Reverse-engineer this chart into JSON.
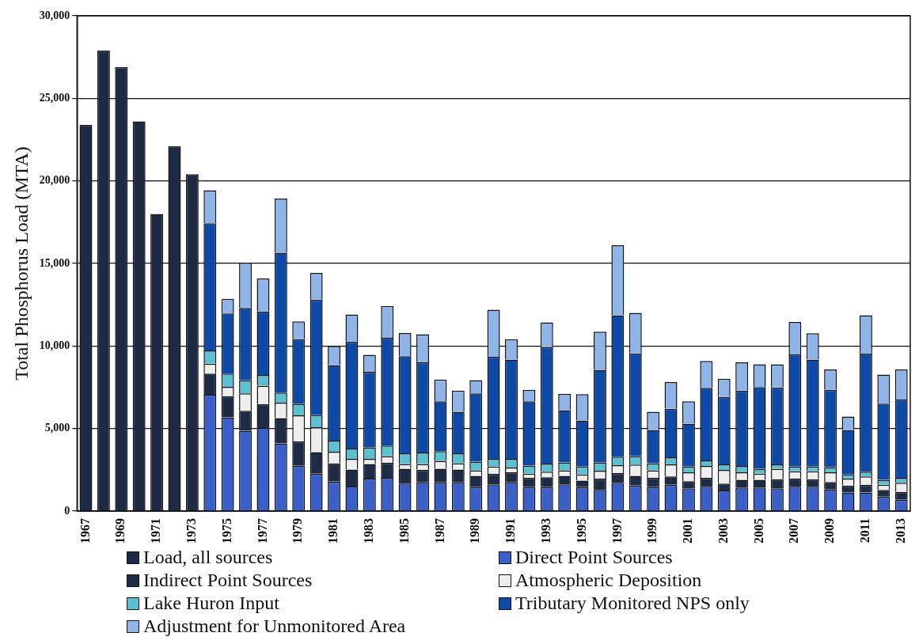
{
  "chart_data": {
    "type": "bar",
    "stacked": true,
    "ylabel": "Total Phosphorus Load (MTA)",
    "categories": [
      "1967",
      null,
      "1969",
      null,
      "1971",
      null,
      "1973",
      null,
      "1975",
      null,
      "1977",
      null,
      "1979",
      null,
      "1981",
      null,
      "1983",
      null,
      "1985",
      null,
      "1987",
      null,
      "1989",
      null,
      "1991",
      null,
      "1993",
      null,
      "1995",
      null,
      "1997",
      null,
      "1999",
      null,
      "2001",
      null,
      "2003",
      null,
      "2005",
      null,
      "2007",
      null,
      "2009",
      null,
      "2011",
      null,
      "2013"
    ],
    "ylim": [
      0,
      30000
    ],
    "yticks": [
      {
        "value": 0,
        "label": "0"
      },
      {
        "value": 5000,
        "label": "5,000"
      },
      {
        "value": 10000,
        "label": "10,000"
      },
      {
        "value": 15000,
        "label": "15,000"
      },
      {
        "value": 20000,
        "label": "20,000"
      },
      {
        "value": 25000,
        "label": "25,000"
      },
      {
        "value": 30000,
        "label": "30,000"
      }
    ],
    "grid": "y",
    "legend": "bottom",
    "series": [
      {
        "name": "Load, all sources",
        "color": "#1c2a44",
        "values": [
          23400,
          27900,
          26900,
          23600,
          18000,
          22100,
          20400,
          null,
          null,
          null,
          null,
          null,
          null,
          null,
          null,
          null,
          null,
          null,
          null,
          null,
          null,
          null,
          null,
          null,
          null,
          null,
          null,
          null,
          null,
          null,
          null,
          null,
          null,
          null,
          null,
          null,
          null,
          null,
          null,
          null,
          null,
          null,
          null,
          null,
          null,
          null,
          null
        ]
      },
      {
        "name": "Direct Point Sources",
        "color": "#3b5fc8",
        "values": [
          null,
          null,
          null,
          null,
          null,
          null,
          null,
          7050,
          5680,
          4870,
          5030,
          4100,
          2740,
          2260,
          1780,
          1480,
          1960,
          2010,
          1670,
          1740,
          1740,
          1740,
          1450,
          1620,
          1740,
          1450,
          1450,
          1620,
          1450,
          1280,
          1710,
          1550,
          1450,
          1590,
          1380,
          1470,
          1250,
          1420,
          1420,
          1380,
          1470,
          1470,
          1300,
          1130,
          1130,
          870,
          680
        ]
      },
      {
        "name": "Indirect Point Sources",
        "color": "#1e2b45",
        "values": [
          null,
          null,
          null,
          null,
          null,
          null,
          null,
          1280,
          1280,
          1200,
          1450,
          1530,
          1480,
          1310,
          1110,
          1040,
          890,
          920,
          890,
          770,
          820,
          780,
          680,
          630,
          610,
          560,
          600,
          510,
          390,
          680,
          590,
          580,
          560,
          510,
          430,
          540,
          420,
          470,
          470,
          550,
          510,
          460,
          460,
          420,
          460,
          410,
          480
        ]
      },
      {
        "name": "Atmospheric Deposition",
        "color": "#eeeeee",
        "values": [
          null,
          null,
          null,
          null,
          null,
          null,
          null,
          600,
          560,
          1060,
          1110,
          940,
          1580,
          1510,
          700,
          640,
          310,
          400,
          290,
          340,
          480,
          380,
          340,
          450,
          290,
          260,
          340,
          340,
          380,
          480,
          480,
          690,
          460,
          730,
          540,
          720,
          820,
          460,
          380,
          630,
          430,
          480,
          590,
          410,
          510,
          310,
          550
        ]
      },
      {
        "name": "Lake Huron Input",
        "color": "#5bc0d0",
        "values": [
          null,
          null,
          null,
          null,
          null,
          null,
          null,
          800,
          810,
          800,
          650,
          610,
          680,
          730,
          680,
          630,
          680,
          630,
          650,
          700,
          590,
          600,
          520,
          460,
          520,
          490,
          480,
          480,
          480,
          510,
          510,
          510,
          430,
          430,
          350,
          340,
          340,
          380,
          290,
          270,
          290,
          290,
          310,
          260,
          290,
          300,
          300
        ]
      },
      {
        "name": "Tributary Monitored NPS only",
        "color": "#0d4aa8",
        "values": [
          null,
          null,
          null,
          null,
          null,
          null,
          null,
          7700,
          3640,
          4380,
          3850,
          8470,
          3930,
          7000,
          4570,
          6480,
          4600,
          6530,
          5880,
          5460,
          3020,
          2520,
          4140,
          6190,
          6020,
          3890,
          7060,
          3160,
          2790,
          5610,
          8570,
          6220,
          2010,
          2930,
          2590,
          4400,
          4080,
          4570,
          4950,
          4660,
          6790,
          6480,
          4690,
          2690,
          7160,
          4610,
          4750
        ]
      },
      {
        "name": "Adjustment for Unmonitored Area",
        "color": "#8fb5e8",
        "values": [
          null,
          null,
          null,
          null,
          null,
          null,
          null,
          2000,
          890,
          2740,
          2000,
          3280,
          1080,
          1620,
          1160,
          1640,
          1030,
          1930,
          1400,
          1700,
          1320,
          1280,
          800,
          2850,
          1230,
          690,
          1500,
          1000,
          1590,
          2310,
          4240,
          2450,
          1110,
          1620,
          1360,
          1620,
          1110,
          1710,
          1380,
          1400,
          1960,
          1590,
          1230,
          820,
          2310,
          1770,
          1820
        ]
      }
    ]
  }
}
